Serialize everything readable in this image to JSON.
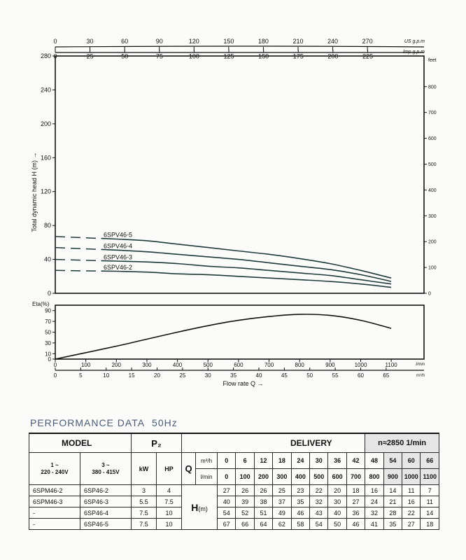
{
  "chart_data": [
    {
      "type": "line",
      "title": "",
      "ylabel": "Total dynamic head H (m) →",
      "ylim": [
        0,
        280
      ],
      "yticks": [
        0,
        40,
        80,
        120,
        160,
        200,
        240,
        280
      ],
      "xlim": [
        0,
        1100
      ],
      "right_axis": {
        "unit": "feet",
        "ticks": [
          "0",
          "100",
          "200",
          "300",
          "400",
          "500",
          "600",
          "700",
          "800"
        ]
      },
      "top_axes": [
        {
          "unit": "US g.p.m",
          "ticks": [
            "0",
            "30",
            "60",
            "90",
            "120",
            "150",
            "180",
            "210",
            "240",
            "270"
          ]
        },
        {
          "unit": "Imp g.p.m",
          "ticks": [
            "0",
            "25",
            "50",
            "75",
            "100",
            "125",
            "150",
            "175",
            "200",
            "225"
          ]
        }
      ],
      "series": [
        {
          "name": "6SPV46-5",
          "dashed_until": 150,
          "points": [
            [
              0,
              67
            ],
            [
              100,
              66
            ],
            [
              200,
              64
            ],
            [
              300,
              62
            ],
            [
              400,
              58
            ],
            [
              500,
              54
            ],
            [
              600,
              50
            ],
            [
              700,
              46
            ],
            [
              800,
              41
            ],
            [
              900,
              35
            ],
            [
              1000,
              27
            ],
            [
              1100,
              18
            ]
          ]
        },
        {
          "name": "6SPV46-4",
          "dashed_until": 150,
          "points": [
            [
              0,
              54
            ],
            [
              100,
              52
            ],
            [
              200,
              51
            ],
            [
              300,
              49
            ],
            [
              400,
              46
            ],
            [
              500,
              43
            ],
            [
              600,
              40
            ],
            [
              700,
              36
            ],
            [
              800,
              32
            ],
            [
              900,
              28
            ],
            [
              1000,
              22
            ],
            [
              1100,
              14
            ]
          ]
        },
        {
          "name": "6SPV46-3",
          "dashed_until": 150,
          "points": [
            [
              0,
              40
            ],
            [
              100,
              39
            ],
            [
              200,
              38
            ],
            [
              300,
              37
            ],
            [
              400,
              35
            ],
            [
              500,
              32
            ],
            [
              600,
              30
            ],
            [
              700,
              27
            ],
            [
              800,
              24
            ],
            [
              900,
              21
            ],
            [
              1000,
              16
            ],
            [
              1100,
              11
            ]
          ]
        },
        {
          "name": "6SPV46-2",
          "dashed_until": 150,
          "points": [
            [
              0,
              27
            ],
            [
              100,
              26
            ],
            [
              200,
              26
            ],
            [
              300,
              25
            ],
            [
              400,
              23
            ],
            [
              500,
              22
            ],
            [
              600,
              20
            ],
            [
              700,
              18
            ],
            [
              800,
              16
            ],
            [
              900,
              14
            ],
            [
              1000,
              11
            ],
            [
              1100,
              7
            ]
          ]
        }
      ]
    },
    {
      "type": "line",
      "title": "",
      "ylabel": "Eta(%)",
      "ylim": [
        0,
        100
      ],
      "yticks": [
        0,
        10,
        30,
        50,
        70,
        90
      ],
      "xlim": [
        0,
        1100
      ],
      "xlabel": "Flow rate  Q  →",
      "xticks_lmin": {
        "unit": "l/min",
        "ticks": [
          "0",
          "100",
          "200",
          "300",
          "400",
          "500",
          "600",
          "700",
          "800",
          "900",
          "1000",
          "1100"
        ]
      },
      "xticks_m3h": {
        "unit": "m³/h",
        "ticks": [
          "0",
          "5",
          "10",
          "15",
          "20",
          "25",
          "30",
          "35",
          "40",
          "45",
          "50",
          "55",
          "60",
          "65"
        ]
      },
      "series": [
        {
          "name": "",
          "points": [
            [
              0,
              0
            ],
            [
              100,
              12
            ],
            [
              200,
              24
            ],
            [
              300,
              37
            ],
            [
              400,
              50
            ],
            [
              500,
              62
            ],
            [
              600,
              72
            ],
            [
              700,
              79
            ],
            [
              800,
              83
            ],
            [
              900,
              81
            ],
            [
              1000,
              72
            ],
            [
              1100,
              57
            ]
          ]
        }
      ]
    }
  ],
  "perf": {
    "title": "PERFORMANCE DATA",
    "freq": "50Hz",
    "model_label": "MODEL",
    "p2_label": "P₂",
    "delivery_label": "DELIVERY",
    "speed_label": "n≈2850 1/min",
    "volt1_a": "1 ~",
    "volt1_b": "220 - 240V",
    "volt3_a": "3 ~",
    "volt3_b": "380 - 415V",
    "kw": "kW",
    "hp": "HP",
    "q_label": "Q",
    "q_unit1": "m³/h",
    "q_unit2": "l/min",
    "h_label": "H",
    "h_unit": "(m)",
    "q_m3h": [
      "0",
      "6",
      "12",
      "18",
      "24",
      "30",
      "36",
      "42",
      "48",
      "54",
      "60",
      "66"
    ],
    "q_lmin": [
      "0",
      "100",
      "200",
      "300",
      "400",
      "500",
      "600",
      "700",
      "800",
      "900",
      "1000",
      "1100"
    ],
    "rows": [
      {
        "m1": "6SPM46-2",
        "m3": "6SP46-2",
        "kw": "3",
        "hp": "4",
        "h": [
          "27",
          "26",
          "26",
          "25",
          "23",
          "22",
          "20",
          "18",
          "16",
          "14",
          "11",
          "7"
        ]
      },
      {
        "m1": "6SPM46-3",
        "m3": "6SP46-3",
        "kw": "5.5",
        "hp": "7.5",
        "h": [
          "40",
          "39",
          "38",
          "37",
          "35",
          "32",
          "30",
          "27",
          "24",
          "21",
          "16",
          "11"
        ]
      },
      {
        "m1": "-",
        "m3": "6SP46-4",
        "kw": "7.5",
        "hp": "10",
        "h": [
          "54",
          "52",
          "51",
          "49",
          "46",
          "43",
          "40",
          "36",
          "32",
          "28",
          "22",
          "14"
        ]
      },
      {
        "m1": "-",
        "m3": "6SP46-5",
        "kw": "7.5",
        "hp": "10",
        "h": [
          "67",
          "66",
          "64",
          "62",
          "58",
          "54",
          "50",
          "46",
          "41",
          "35",
          "27",
          "18"
        ]
      }
    ]
  }
}
